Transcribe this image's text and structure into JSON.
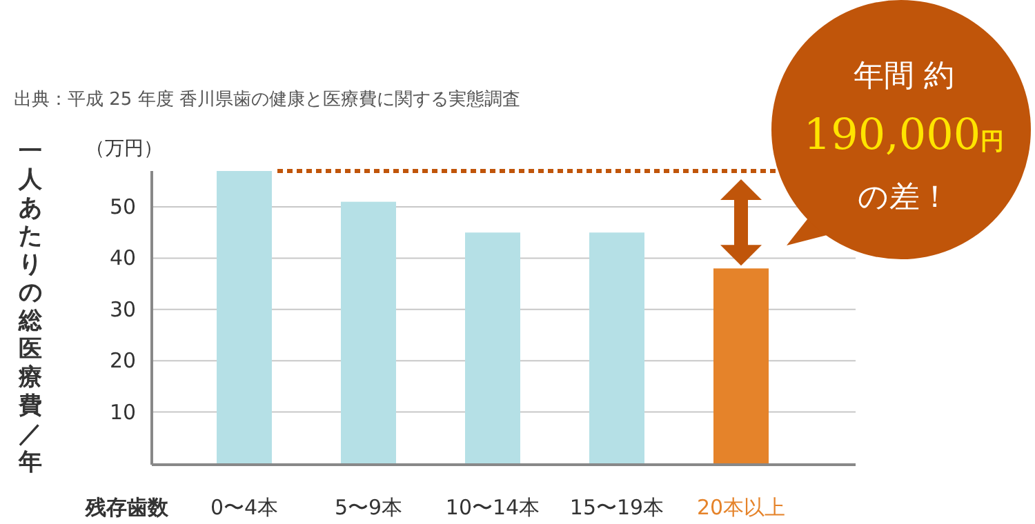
{
  "chart_data": {
    "type": "bar",
    "categories": [
      "0〜4本",
      "5〜9本",
      "10〜14本",
      "15〜19本",
      "20本以上"
    ],
    "values": [
      57,
      51,
      45,
      45,
      38
    ],
    "colors": [
      "#b5e0e6",
      "#b5e0e6",
      "#b5e0e6",
      "#b5e0e6",
      "#e5832a"
    ],
    "xlabel": "残存歯数",
    "ylabel": "一人あたりの総医療費／年",
    "ylim": [
      0,
      57
    ],
    "yticks": [
      10,
      20,
      30,
      40,
      50
    ],
    "grid": "y",
    "ref_lines": [
      {
        "axis": "y",
        "value": 57,
        "color": "#c0550a",
        "line_style": "dotted"
      }
    ],
    "annotations": [
      "出典：平成 25 年度 香川県歯の健康と医療費に関する実態調査",
      "（万円）",
      "年間 約",
      "190,000円",
      "の差！"
    ]
  }
}
